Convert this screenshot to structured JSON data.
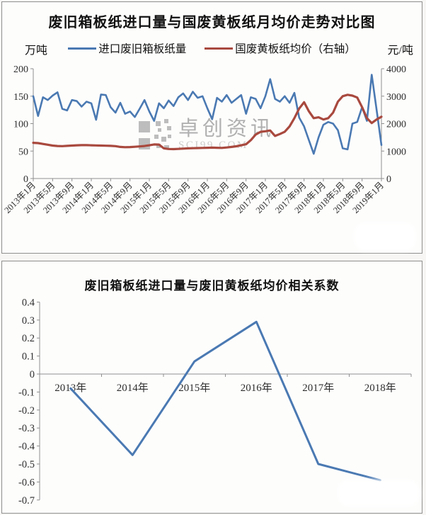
{
  "watermark": {
    "text_cn": "卓创资讯",
    "text_en": "SCI99.COM"
  },
  "chart_data": [
    {
      "type": "line",
      "title": "废旧箱板纸进口量与国废黄板纸月均价走势对比图",
      "legend_position": "top",
      "left_axis": {
        "unit": "万吨",
        "ticks": [
          0,
          50,
          100,
          150,
          200
        ],
        "range": [
          0,
          200
        ]
      },
      "right_axis": {
        "unit": "元/吨",
        "ticks": [
          0,
          1000,
          2000,
          3000,
          4000
        ],
        "range": [
          0,
          4000
        ]
      },
      "x_tick_labels": [
        "2013年1月",
        "2013年5月",
        "2013年9月",
        "2014年1月",
        "2014年5月",
        "2014年9月",
        "2015年1月",
        "2015年5月",
        "2015年9月",
        "2016年1月",
        "2016年5月",
        "2016年9月",
        "2017年1月",
        "2017年5月",
        "2017年9月",
        "2018年1月",
        "2018年5月",
        "2018年9月",
        "2019年1月"
      ],
      "x_start": "2013年1月",
      "x_end": "2019年1月",
      "months_total": 73,
      "series": [
        {
          "name": "进口废旧箱板纸量",
          "axis": "left",
          "color": "#4a79b2",
          "values": [
            150,
            114,
            148,
            143,
            151,
            157,
            127,
            124,
            143,
            141,
            131,
            140,
            137,
            107,
            153,
            152,
            130,
            120,
            138,
            118,
            122,
            112,
            127,
            143,
            122,
            105,
            137,
            128,
            142,
            132,
            148,
            155,
            143,
            158,
            147,
            150,
            128,
            108,
            147,
            140,
            152,
            138,
            145,
            152,
            118,
            148,
            145,
            128,
            150,
            181,
            145,
            140,
            150,
            138,
            156,
            111,
            95,
            70,
            45,
            75,
            98,
            103,
            100,
            88,
            55,
            53,
            100,
            103,
            130,
            105,
            189,
            125,
            61
          ]
        },
        {
          "name": "国废黄板纸均价（右轴）",
          "axis": "right",
          "color": "#a9493e",
          "values": [
            1300,
            1290,
            1260,
            1230,
            1200,
            1185,
            1180,
            1190,
            1200,
            1210,
            1215,
            1215,
            1210,
            1205,
            1200,
            1195,
            1190,
            1180,
            1150,
            1140,
            1145,
            1155,
            1170,
            1185,
            1210,
            1240,
            1235,
            1100,
            1075,
            1070,
            1080,
            1090,
            1100,
            1105,
            1110,
            1115,
            1120,
            1125,
            1120,
            1115,
            1130,
            1150,
            1175,
            1210,
            1250,
            1400,
            1600,
            1700,
            1720,
            1750,
            1550,
            1620,
            1700,
            1900,
            2200,
            2550,
            2780,
            2450,
            2200,
            2230,
            2150,
            2200,
            2400,
            2800,
            3000,
            3050,
            3020,
            2950,
            2600,
            2200,
            2020,
            2150,
            2250
          ]
        }
      ]
    },
    {
      "type": "line",
      "title": "废旧箱板纸进口量与废旧黄板纸均价相关系数",
      "categories": [
        "2013年",
        "2014年",
        "2015年",
        "2016年",
        "2017年",
        "2018年"
      ],
      "values": [
        -0.08,
        -0.45,
        0.07,
        0.29,
        -0.5,
        -0.59
      ],
      "ylim": [
        -0.7,
        0.4
      ],
      "ytick_step": 0.1,
      "color": "#4a79b2",
      "grid": "off",
      "legend_position": "none"
    }
  ]
}
